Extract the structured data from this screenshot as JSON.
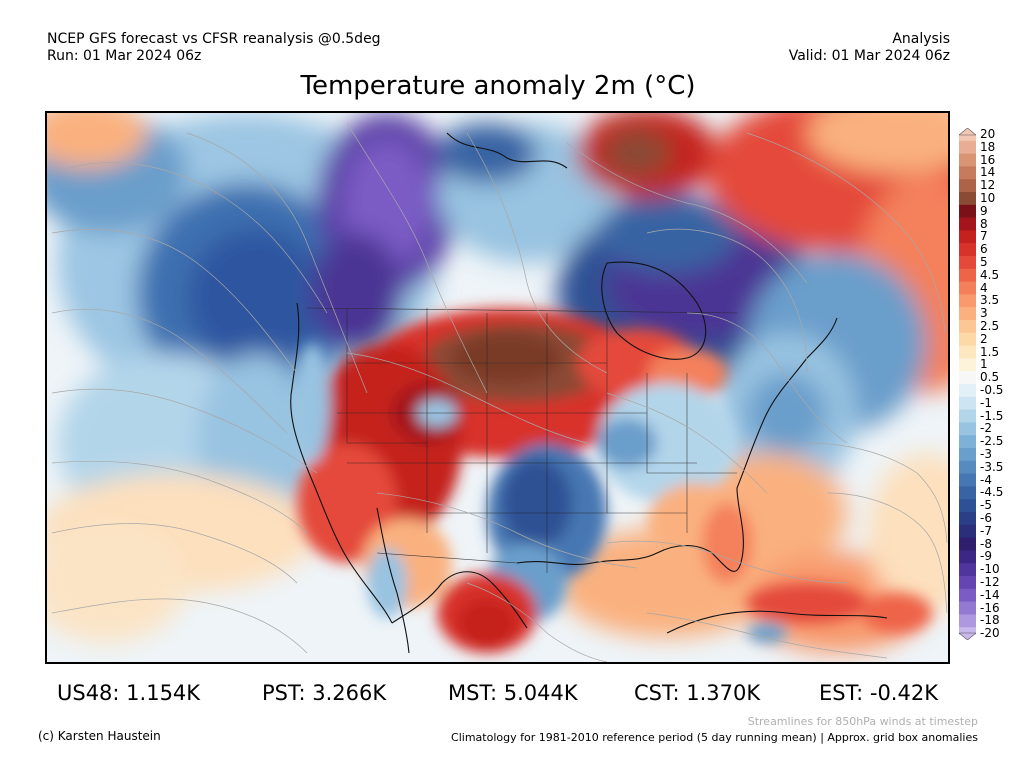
{
  "header": {
    "line1_left": "NCEP GFS forecast vs CFSR reanalysis @0.5deg",
    "line2_left": "Run: 01 Mar 2024 06z",
    "line1_right": "Analysis",
    "line2_right": "Valid: 01 Mar 2024 06z"
  },
  "title": "Temperature anomaly 2m (°C)",
  "colorbar": {
    "labels": [
      "20",
      "18",
      "16",
      "14",
      "12",
      "10",
      "9",
      "8",
      "7",
      "6",
      "5",
      "4.5",
      "4",
      "3.5",
      "3",
      "2.5",
      "2",
      "1.5",
      "1",
      "0.5",
      "-0.5",
      "-1",
      "-1.5",
      "-2",
      "-2.5",
      "-3",
      "-3.5",
      "-4",
      "-4.5",
      "-5",
      "-6",
      "-7",
      "-8",
      "-9",
      "-10",
      "-12",
      "-14",
      "-16",
      "-18",
      "-20"
    ],
    "colors": [
      "#f3c7b3",
      "#e8ad94",
      "#d99474",
      "#c67b5c",
      "#ad6347",
      "#8b4a34",
      "#7a1118",
      "#a3151b",
      "#c5221f",
      "#d8332a",
      "#e4493a",
      "#ee6449",
      "#f4805b",
      "#f89a6d",
      "#fab17f",
      "#fcc794",
      "#fdd9a8",
      "#fde7c1",
      "#fdf3da",
      "#f7f7f7",
      "#e3f0f7",
      "#cde4f2",
      "#b3d5ea",
      "#98c3e1",
      "#7eb1d7",
      "#6a9ecb",
      "#578bbf",
      "#4677b2",
      "#3964a3",
      "#2d5194",
      "#2a3f86",
      "#2b2e79",
      "#2e1e6b",
      "#3d2785",
      "#50369c",
      "#6445b1",
      "#7a5cc4",
      "#9479d3",
      "#ae98e0",
      "#c8b8ec"
    ]
  },
  "stats": {
    "us48": "US48: 1.154K",
    "pst": "PST: 3.266K",
    "mst": "MST: 5.044K",
    "cst": "CST: 1.370K",
    "est": "EST: -0.42K"
  },
  "footer": {
    "streamlines": "Streamlines for 850hPa winds at timestep",
    "copyright": "(c) Karsten Haustein",
    "climatology": "Climatology for 1981-2010 reference period (5 day running mean) | Approx. grid box anomalies"
  }
}
